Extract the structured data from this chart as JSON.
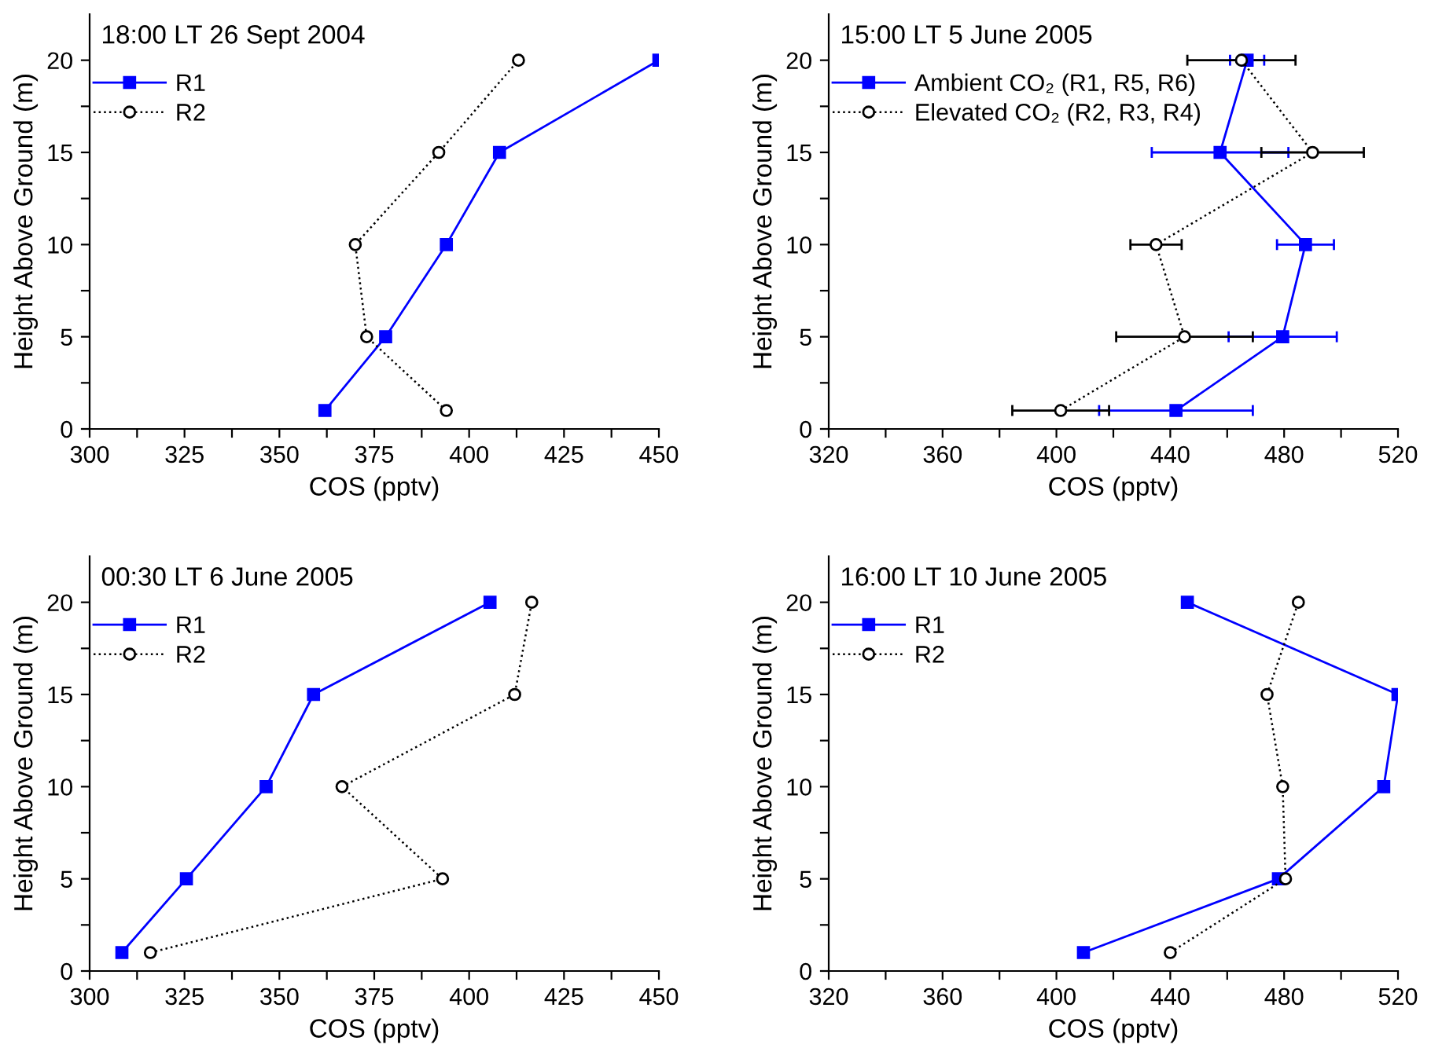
{
  "chart_data": [
    {
      "type": "line",
      "title": "18:00 LT 26 Sept 2004",
      "xlabel": "COS (pptv)",
      "ylabel": "Height Above Ground (m)",
      "legend": "top left",
      "grid": false,
      "xlim": [
        300,
        450
      ],
      "xticks": [
        300,
        {
          "value": 312.5,
          "label": null
        },
        325,
        {
          "value": 337.5,
          "label": null
        },
        350,
        {
          "value": 362.5,
          "label": null
        },
        375,
        {
          "value": 387.5,
          "label": null
        },
        400,
        {
          "value": 412.5,
          "label": null
        },
        425,
        {
          "value": 437.5,
          "label": null
        },
        450
      ],
      "ylim": [
        0,
        22.5
      ],
      "yticks": [
        0,
        {
          "value": 2.5,
          "label": null
        },
        5,
        {
          "value": 7.5,
          "label": null
        },
        10,
        {
          "value": 12.5,
          "label": null
        },
        15,
        {
          "value": 17.5,
          "label": null
        },
        20
      ],
      "series": [
        {
          "name": "R1",
          "color": "#0000ff",
          "marker": "square",
          "line_style": "solid",
          "x": [
            362,
            378,
            394,
            408,
            450
          ],
          "values": [
            1,
            5,
            10,
            15,
            20
          ]
        },
        {
          "name": "R2",
          "color": "#000000",
          "marker": "circle",
          "line_style": "dotted",
          "x": [
            394,
            373,
            370,
            392,
            413
          ],
          "values": [
            1,
            5,
            10,
            15,
            20
          ]
        }
      ]
    },
    {
      "type": "line",
      "title": "15:00 LT 5 June 2005",
      "xlabel": "COS (pptv)",
      "ylabel": "Height Above Ground (m)",
      "legend": "top left",
      "grid": false,
      "xlim": [
        320,
        520
      ],
      "xticks": [
        320,
        {
          "value": 340,
          "label": null
        },
        360,
        {
          "value": 380,
          "label": null
        },
        400,
        {
          "value": 420,
          "label": null
        },
        440,
        {
          "value": 460,
          "label": null
        },
        480,
        {
          "value": 500,
          "label": null
        },
        520
      ],
      "ylim": [
        0,
        22.5
      ],
      "yticks": [
        0,
        {
          "value": 2.5,
          "label": null
        },
        5,
        {
          "value": 7.5,
          "label": null
        },
        10,
        {
          "value": 12.5,
          "label": null
        },
        15,
        {
          "value": 17.5,
          "label": null
        },
        20
      ],
      "series": [
        {
          "name": "Ambient CO₂ (R1, R5, R6)",
          "color": "#0000ff",
          "marker": "square",
          "line_style": "solid",
          "x": [
            442,
            479.5,
            487.5,
            457.5,
            467
          ],
          "values": [
            1,
            5,
            10,
            15,
            20
          ],
          "xerrors": [
            27,
            19,
            10,
            24,
            6
          ]
        },
        {
          "name": "Elevated CO₂ (R2, R3, R4)",
          "color": "#000000",
          "marker": "circle",
          "line_style": "dotted",
          "x": [
            401.5,
            445,
            435,
            490,
            465
          ],
          "values": [
            1,
            5,
            10,
            15,
            20
          ],
          "xerrors": [
            17,
            24,
            9,
            18,
            19
          ]
        }
      ]
    },
    {
      "type": "line",
      "title": "00:30 LT 6 June 2005",
      "xlabel": "COS (pptv)",
      "ylabel": "Height Above Ground (m)",
      "legend": "top left",
      "grid": false,
      "xlim": [
        300,
        450
      ],
      "xticks": [
        300,
        {
          "value": 312.5,
          "label": null
        },
        325,
        {
          "value": 337.5,
          "label": null
        },
        350,
        {
          "value": 362.5,
          "label": null
        },
        375,
        {
          "value": 387.5,
          "label": null
        },
        400,
        {
          "value": 412.5,
          "label": null
        },
        425,
        {
          "value": 437.5,
          "label": null
        },
        450
      ],
      "ylim": [
        0,
        22.5
      ],
      "yticks": [
        0,
        {
          "value": 2.5,
          "label": null
        },
        5,
        {
          "value": 7.5,
          "label": null
        },
        10,
        {
          "value": 12.5,
          "label": null
        },
        15,
        {
          "value": 17.5,
          "label": null
        },
        20
      ],
      "series": [
        {
          "name": "R1",
          "color": "#0000ff",
          "marker": "square",
          "line_style": "solid",
          "x": [
            308.5,
            325.5,
            346.5,
            359,
            405.5
          ],
          "values": [
            1,
            5,
            10,
            15,
            20
          ]
        },
        {
          "name": "R2",
          "color": "#000000",
          "marker": "circle",
          "line_style": "dotted",
          "x": [
            316,
            393,
            366.5,
            412,
            416.5
          ],
          "values": [
            1,
            5,
            10,
            15,
            20
          ]
        }
      ]
    },
    {
      "type": "line",
      "title": "16:00 LT 10 June 2005",
      "xlabel": "COS (pptv)",
      "ylabel": "Height Above Ground (m)",
      "legend": "top left",
      "grid": false,
      "xlim": [
        320,
        520
      ],
      "xticks": [
        320,
        {
          "value": 340,
          "label": null
        },
        360,
        {
          "value": 380,
          "label": null
        },
        400,
        {
          "value": 420,
          "label": null
        },
        440,
        {
          "value": 460,
          "label": null
        },
        480,
        {
          "value": 500,
          "label": null
        },
        520
      ],
      "ylim": [
        0,
        22.5
      ],
      "yticks": [
        0,
        {
          "value": 2.5,
          "label": null
        },
        5,
        {
          "value": 7.5,
          "label": null
        },
        10,
        {
          "value": 12.5,
          "label": null
        },
        15,
        {
          "value": 17.5,
          "label": null
        },
        20
      ],
      "series": [
        {
          "name": "R1",
          "color": "#0000ff",
          "marker": "square",
          "line_style": "solid",
          "x": [
            409.5,
            478,
            515,
            520,
            446
          ],
          "values": [
            1,
            5,
            10,
            15,
            20
          ]
        },
        {
          "name": "R2",
          "color": "#000000",
          "marker": "circle",
          "line_style": "dotted",
          "x": [
            440,
            480.5,
            479.5,
            474,
            485
          ],
          "values": [
            1,
            5,
            10,
            15,
            20
          ]
        }
      ]
    }
  ]
}
